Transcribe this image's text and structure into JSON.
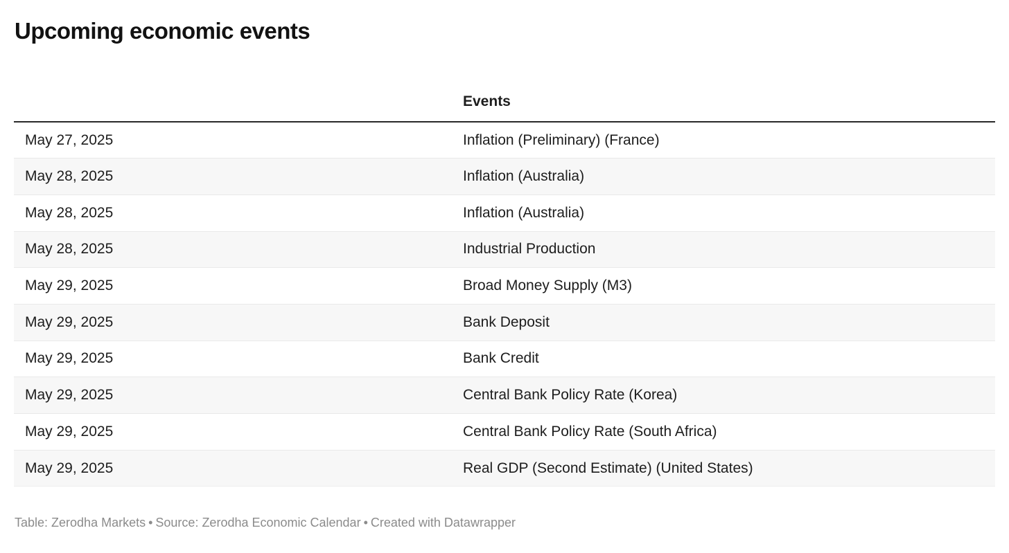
{
  "title": "Upcoming economic events",
  "chart_data": {
    "type": "table",
    "title": "Upcoming economic events",
    "columns": [
      "",
      "Events"
    ],
    "rows": [
      [
        "May 27, 2025",
        "Inflation (Preliminary) (France)"
      ],
      [
        "May 28, 2025",
        "Inflation (Australia)"
      ],
      [
        "May 28, 2025",
        "Inflation (Australia)"
      ],
      [
        "May 28, 2025",
        "Industrial Production"
      ],
      [
        "May 29, 2025",
        "Broad Money Supply (M3)"
      ],
      [
        "May 29, 2025",
        "Bank Deposit"
      ],
      [
        "May 29, 2025",
        "Bank Credit"
      ],
      [
        "May 29, 2025",
        "Central Bank Policy Rate (Korea)"
      ],
      [
        "May 29, 2025",
        "Central Bank Policy Rate (South Africa)"
      ],
      [
        "May 29, 2025",
        "Real GDP (Second Estimate) (United States)"
      ]
    ],
    "layout": {
      "striped_rows": true,
      "stripe_on": "even",
      "header_rule": "thick-dark",
      "grid": "horizontal-only"
    }
  },
  "footer": {
    "table_credit": "Table: Zerodha Markets",
    "separator": "•",
    "source": "Source: Zerodha Economic Calendar",
    "created_with": "Created with Datawrapper"
  },
  "colors": {
    "title_text": "#121212",
    "body_text": "#1d1d1d",
    "row_alt_bg": "#f7f7f7",
    "row_separator": "#e9e9e9",
    "header_rule": "#282828",
    "footer_text": "#8b8b8b",
    "background": "#ffffff"
  }
}
